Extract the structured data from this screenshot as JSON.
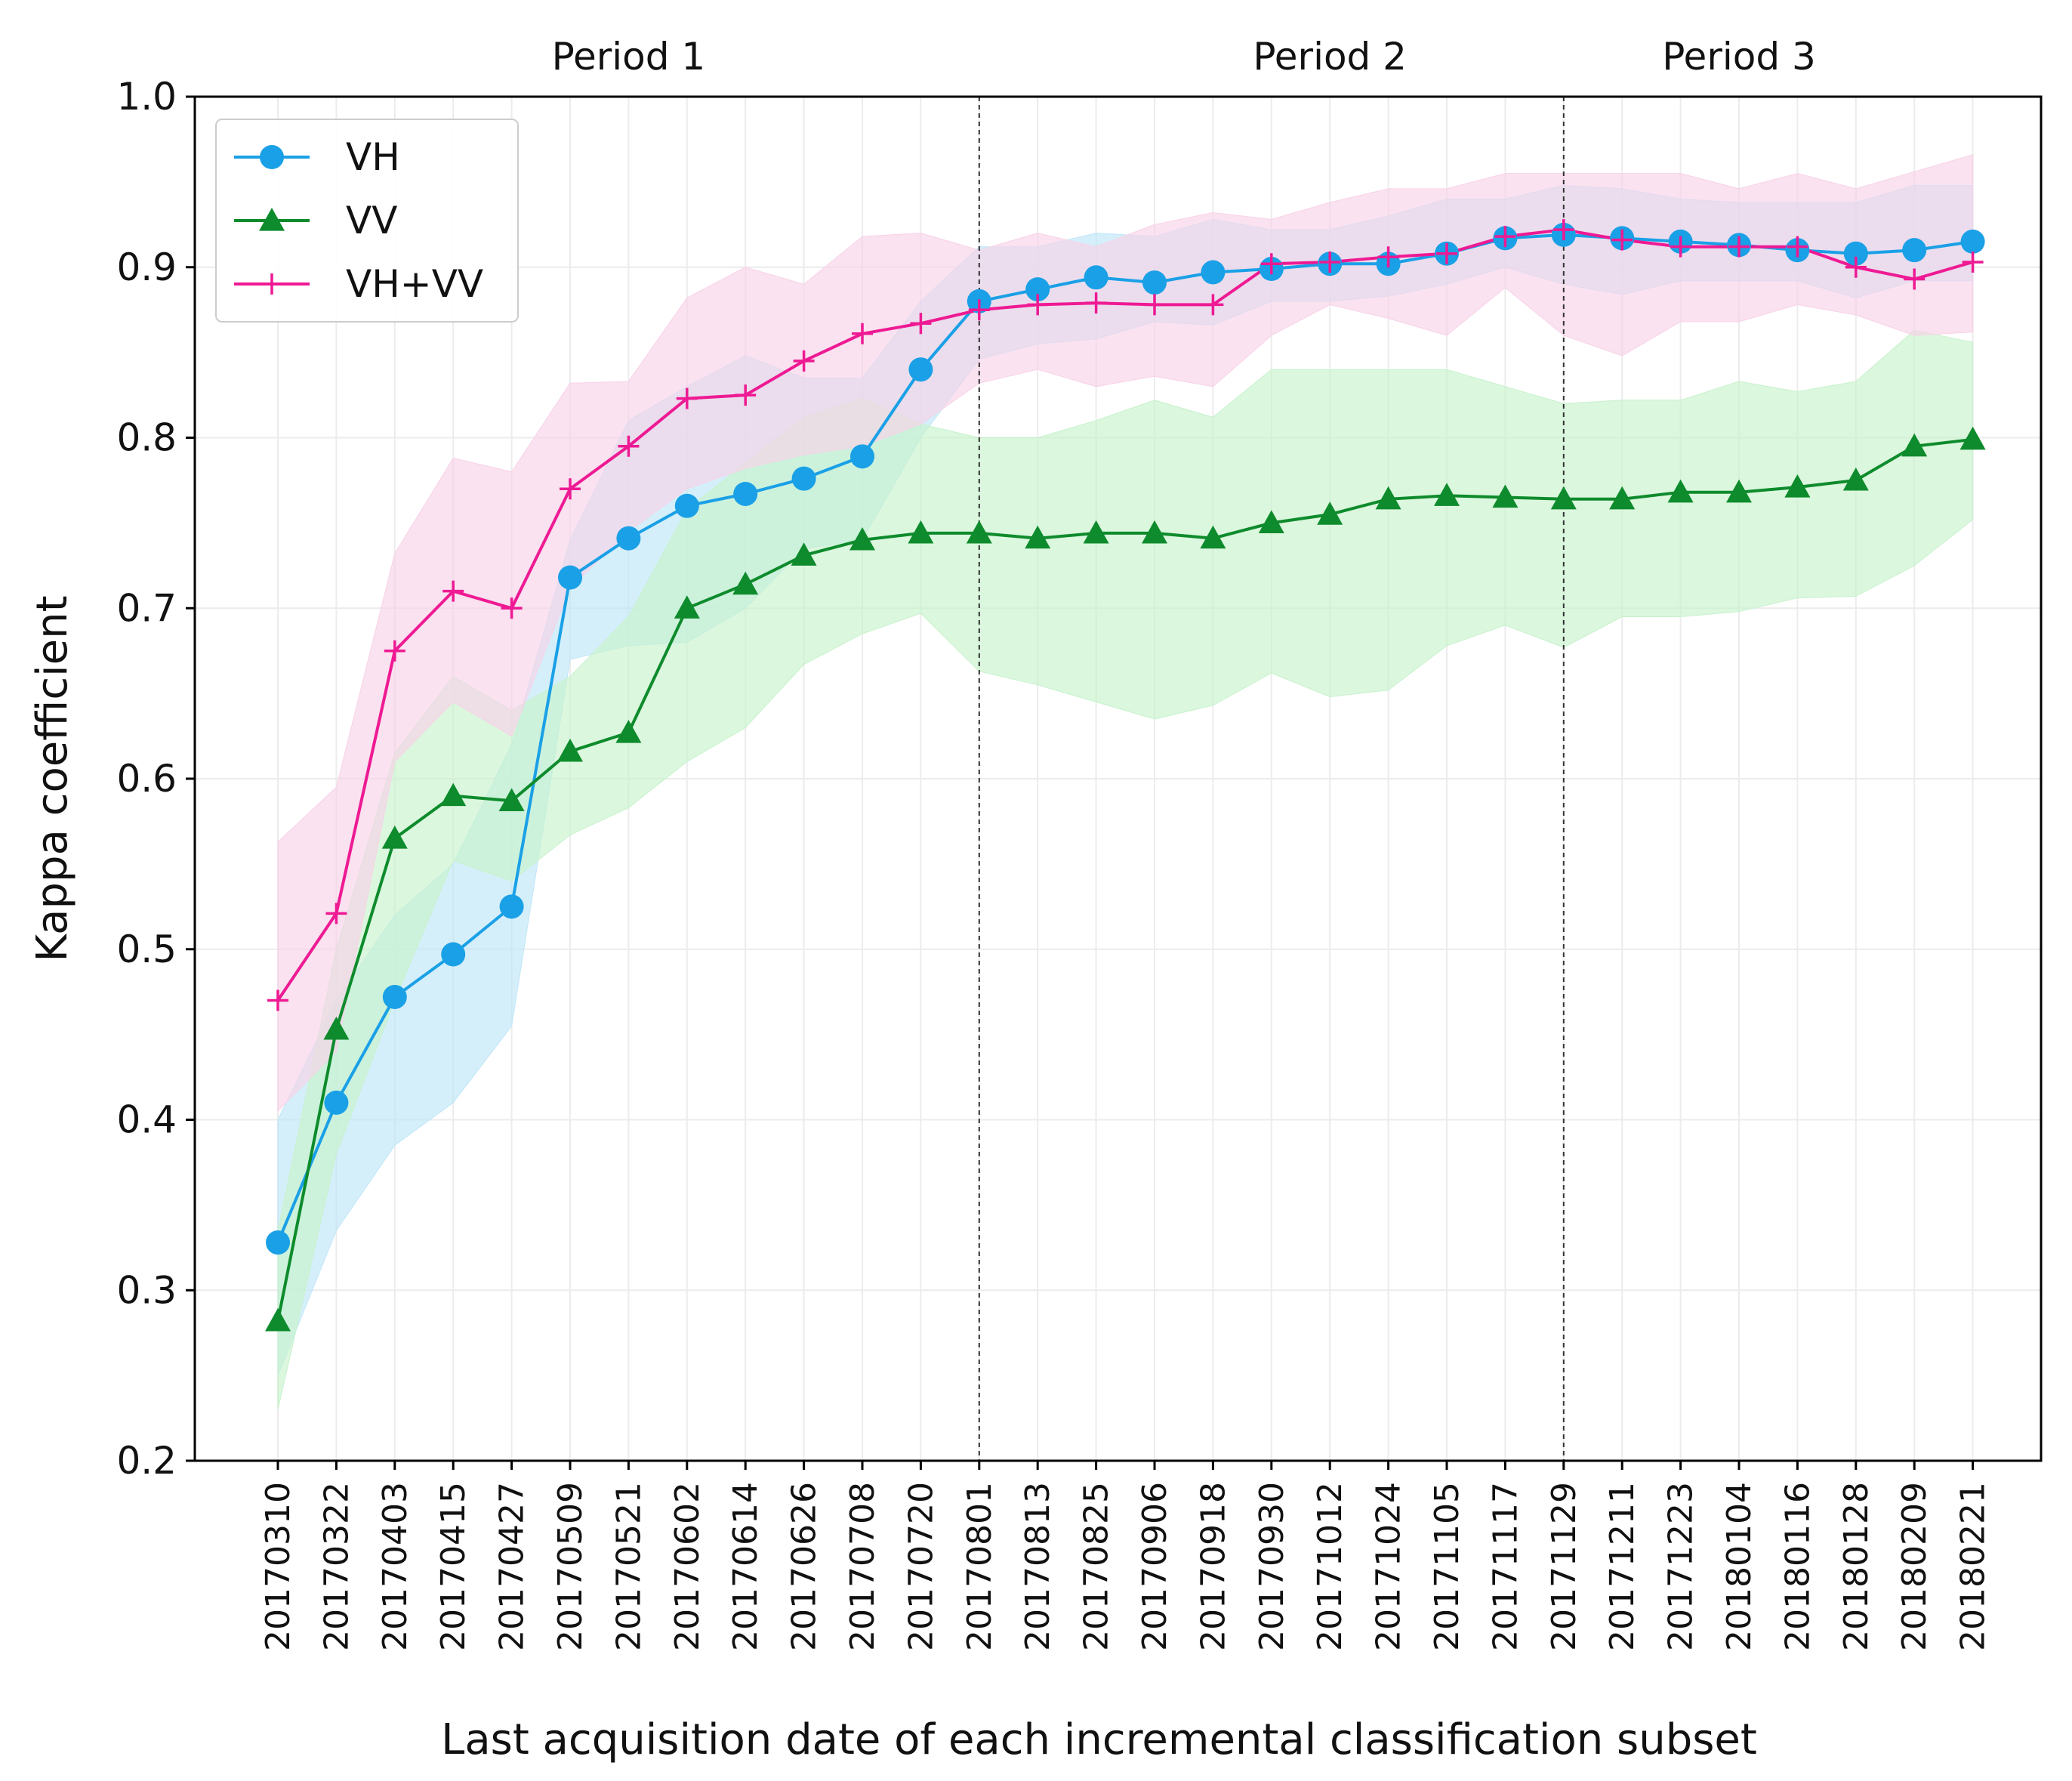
{
  "chart_data": {
    "type": "line",
    "xlabel": "Last acquisition date of each incremental classification subset",
    "ylabel": "Kappa coefficient",
    "ylim": [
      0.2,
      1.0
    ],
    "yticks": [
      "0.2",
      "0.3",
      "0.4",
      "0.5",
      "0.6",
      "0.7",
      "0.8",
      "0.9",
      "1.0"
    ],
    "grid": true,
    "legend_position": "top-left",
    "categories": [
      "20170310",
      "20170322",
      "20170403",
      "20170415",
      "20170427",
      "20170509",
      "20170521",
      "20170602",
      "20170614",
      "20170626",
      "20170708",
      "20170720",
      "20170801",
      "20170813",
      "20170825",
      "20170906",
      "20170918",
      "20170930",
      "20171012",
      "20171024",
      "20171105",
      "20171117",
      "20171129",
      "20171211",
      "20171223",
      "20180104",
      "20180116",
      "20180128",
      "20180209",
      "20180221"
    ],
    "periods": [
      {
        "label": "Period 1",
        "center_category": "20170521"
      },
      {
        "label": "Period 2",
        "center_category": "20171012"
      },
      {
        "label": "Period 3",
        "center_category": "20180104"
      }
    ],
    "period_dividers": [
      "20170801",
      "20171129"
    ],
    "series": [
      {
        "name": "VH",
        "color": "#1AA0E6",
        "fill": "#BFE6F8",
        "marker": "circle",
        "values": [
          0.328,
          0.41,
          0.472,
          0.497,
          0.525,
          0.718,
          0.741,
          0.76,
          0.767,
          0.776,
          0.789,
          0.84,
          0.88,
          0.887,
          0.894,
          0.891,
          0.897,
          0.899,
          0.902,
          0.902,
          0.908,
          0.917,
          0.919,
          0.917,
          0.915,
          0.913,
          0.91,
          0.908,
          0.91,
          0.915
        ],
        "lower": [
          0.25,
          0.335,
          0.385,
          0.41,
          0.455,
          0.67,
          0.678,
          0.68,
          0.7,
          0.735,
          0.74,
          0.8,
          0.846,
          0.855,
          0.858,
          0.868,
          0.866,
          0.88,
          0.88,
          0.883,
          0.89,
          0.9,
          0.89,
          0.884,
          0.892,
          0.892,
          0.892,
          0.882,
          0.892,
          0.892
        ],
        "upper": [
          0.4,
          0.47,
          0.52,
          0.55,
          0.62,
          0.74,
          0.81,
          0.83,
          0.848,
          0.835,
          0.835,
          0.88,
          0.912,
          0.912,
          0.92,
          0.918,
          0.928,
          0.922,
          0.922,
          0.93,
          0.94,
          0.94,
          0.948,
          0.946,
          0.94,
          0.938,
          0.938,
          0.938,
          0.948,
          0.948
        ]
      },
      {
        "name": "VV",
        "color": "#0E8B2C",
        "fill": "#C7F2CC",
        "marker": "triangle",
        "values": [
          0.282,
          0.453,
          0.565,
          0.59,
          0.587,
          0.616,
          0.627,
          0.7,
          0.714,
          0.731,
          0.74,
          0.744,
          0.744,
          0.741,
          0.744,
          0.744,
          0.741,
          0.75,
          0.755,
          0.764,
          0.766,
          0.765,
          0.764,
          0.764,
          0.768,
          0.768,
          0.771,
          0.775,
          0.795,
          0.799
        ],
        "lower": [
          0.23,
          0.38,
          0.47,
          0.552,
          0.54,
          0.567,
          0.583,
          0.61,
          0.63,
          0.667,
          0.685,
          0.697,
          0.663,
          0.655,
          0.645,
          0.635,
          0.643,
          0.662,
          0.648,
          0.652,
          0.678,
          0.69,
          0.677,
          0.695,
          0.695,
          0.698,
          0.706,
          0.707,
          0.725,
          0.752
        ],
        "upper": [
          0.335,
          0.5,
          0.615,
          0.66,
          0.64,
          0.66,
          0.695,
          0.758,
          0.785,
          0.812,
          0.823,
          0.808,
          0.8,
          0.8,
          0.81,
          0.822,
          0.812,
          0.84,
          0.84,
          0.84,
          0.84,
          0.83,
          0.82,
          0.822,
          0.822,
          0.833,
          0.827,
          0.833,
          0.863,
          0.856
        ]
      },
      {
        "name": "VH+VV",
        "color": "#EE1A93",
        "fill": "#F8D2E8",
        "marker": "plus",
        "values": [
          0.47,
          0.521,
          0.675,
          0.71,
          0.7,
          0.77,
          0.795,
          0.823,
          0.825,
          0.845,
          0.861,
          0.867,
          0.875,
          0.878,
          0.879,
          0.878,
          0.878,
          0.902,
          0.903,
          0.906,
          0.908,
          0.918,
          0.922,
          0.916,
          0.912,
          0.912,
          0.912,
          0.9,
          0.893,
          0.903
        ],
        "lower": [
          0.405,
          0.44,
          0.61,
          0.645,
          0.625,
          0.712,
          0.745,
          0.77,
          0.782,
          0.79,
          0.795,
          0.808,
          0.832,
          0.84,
          0.83,
          0.836,
          0.83,
          0.86,
          0.878,
          0.87,
          0.86,
          0.888,
          0.86,
          0.848,
          0.868,
          0.868,
          0.878,
          0.872,
          0.86,
          0.862
        ],
        "upper": [
          0.563,
          0.595,
          0.732,
          0.788,
          0.78,
          0.832,
          0.833,
          0.882,
          0.9,
          0.89,
          0.918,
          0.92,
          0.91,
          0.92,
          0.912,
          0.925,
          0.932,
          0.928,
          0.938,
          0.946,
          0.946,
          0.955,
          0.955,
          0.955,
          0.955,
          0.946,
          0.955,
          0.946,
          0.956,
          0.966
        ]
      }
    ]
  }
}
